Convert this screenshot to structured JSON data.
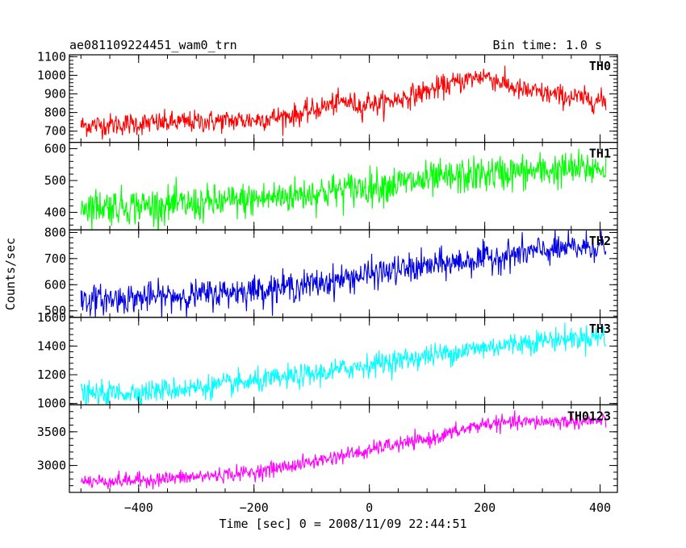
{
  "chart_data": {
    "type": "line",
    "title_left": "ae081109224451_wam0_trn",
    "title_right": "Bin time: 1.0 s",
    "xlabel": "Time [sec] 0 = 2008/11/09 22:44:51",
    "ylabel": "Counts/sec",
    "xlim": [
      -520,
      430
    ],
    "xticks": [
      -400,
      -200,
      0,
      200,
      400
    ],
    "x_range": [
      -500,
      410
    ],
    "grid": false,
    "panels": [
      {
        "name": "TH0",
        "color": "#ff0000",
        "ylim": [
          640,
          1110
        ],
        "yticks": [
          700,
          800,
          900,
          1000,
          1100
        ],
        "trend_x": [
          -500,
          -400,
          -300,
          -200,
          -120,
          -70,
          -40,
          -10,
          0,
          10,
          60,
          150,
          200,
          260,
          330,
          410
        ],
        "trend_y": [
          730,
          740,
          750,
          760,
          790,
          840,
          860,
          830,
          870,
          840,
          880,
          960,
          1000,
          920,
          890,
          860
        ],
        "noise": 30
      },
      {
        "name": "TH1",
        "color": "#00ff00",
        "ylim": [
          345,
          620
        ],
        "yticks": [
          400,
          500,
          600
        ],
        "trend_x": [
          -500,
          -400,
          -300,
          -200,
          -100,
          0,
          100,
          200,
          300,
          410
        ],
        "trend_y": [
          420,
          420,
          425,
          440,
          460,
          480,
          500,
          520,
          530,
          540
        ],
        "noise": 28
      },
      {
        "name": "TH2",
        "color": "#0000e6",
        "ylim": [
          475,
          810
        ],
        "yticks": [
          500,
          600,
          700,
          800
        ],
        "trend_x": [
          -500,
          -400,
          -300,
          -200,
          -100,
          0,
          100,
          200,
          300,
          410
        ],
        "trend_y": [
          540,
          550,
          560,
          580,
          600,
          640,
          670,
          700,
          730,
          750
        ],
        "noise": 28
      },
      {
        "name": "TH3",
        "color": "#00ffff",
        "ylim": [
          990,
          1600
        ],
        "yticks": [
          1000,
          1200,
          1400,
          1600
        ],
        "trend_x": [
          -500,
          -400,
          -300,
          -200,
          -100,
          0,
          100,
          200,
          300,
          410
        ],
        "trend_y": [
          1060,
          1080,
          1110,
          1150,
          1200,
          1270,
          1330,
          1390,
          1440,
          1470
        ],
        "noise": 40
      },
      {
        "name": "TH0123",
        "color": "#ff00ff",
        "ylim": [
          2600,
          3900
        ],
        "yticks": [
          3000,
          3500
        ],
        "trend_x": [
          -500,
          -400,
          -300,
          -200,
          -100,
          -30,
          0,
          10,
          100,
          200,
          300,
          410
        ],
        "trend_y": [
          2760,
          2780,
          2830,
          2900,
          3050,
          3180,
          3200,
          3260,
          3380,
          3620,
          3650,
          3660
        ],
        "noise": 55
      }
    ]
  }
}
